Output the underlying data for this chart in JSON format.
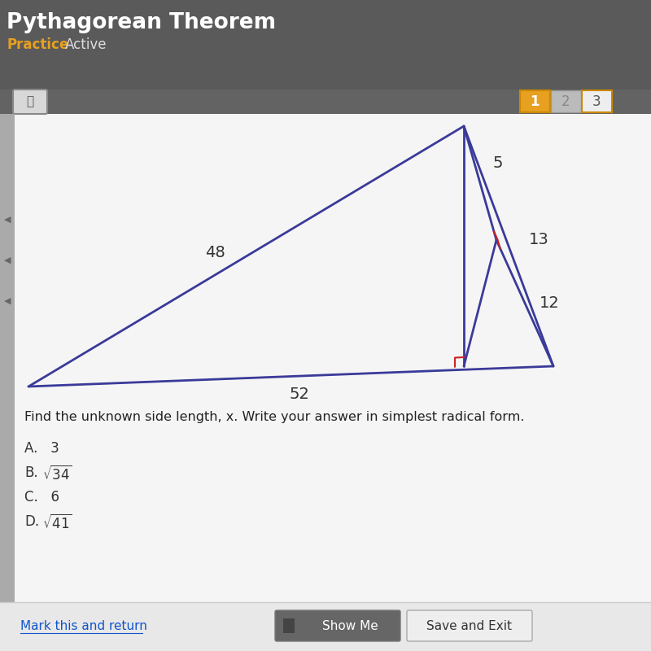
{
  "bg_color": "#636363",
  "panel_color": "#f0f0f0",
  "white_panel_color": "#f5f5f5",
  "title_text": "Pythagorean Theorem",
  "subtitle_left": "Practice",
  "subtitle_right": "Active",
  "title_color": "#ffffff",
  "practice_color": "#e8a020",
  "active_color": "#dddddd",
  "triangle_color": "#3a3a9a",
  "right_angle_color": "#cc2222",
  "label_color": "#333333",
  "num_buttons": [
    "1",
    "2",
    "3"
  ],
  "btn1_color": "#e8a020",
  "btn2_color": "#bbbbbb",
  "btn3_color": "#eeeeee",
  "question_text": "Find the unknown side length, x. Write your answer in simplest radical form.",
  "footer_left": "Mark this and return",
  "footer_middle": "Show Me",
  "footer_right": "Save and Exit"
}
